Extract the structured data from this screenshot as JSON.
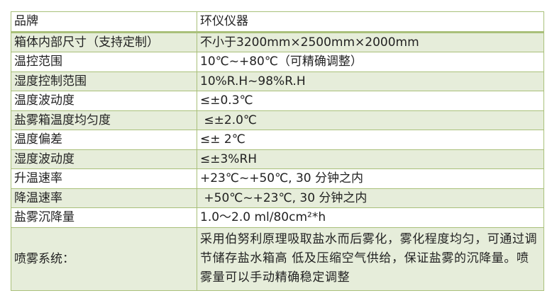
{
  "rows": [
    {
      "label": "品牌",
      "value": "环仪仪器"
    },
    {
      "label": "箱体内部尺寸（支持定制）",
      "value": "不小于3200mm×2500mm×2000mm"
    },
    {
      "label": "温控范围",
      "value": "10℃~+80℃（可精确调整）"
    },
    {
      "label": "湿度控制范围",
      "value": "10%R.H~98%R.H"
    },
    {
      "label": "温度波动度",
      "value": "≤±0.3℃"
    },
    {
      "label": "盐雾箱温度均匀度",
      "value": " ≤±2.0℃"
    },
    {
      "label": "温度偏差",
      "value": "≤± 2℃"
    },
    {
      "label": "湿度波动度",
      "value": "≤±3%RH"
    },
    {
      "label": "升温速率",
      "value": "+23℃~+50℃, 30 分钟之内"
    },
    {
      "label": "降温速率",
      "value": " +50℃~+23℃, 30 分钟之内"
    },
    {
      "label": "盐雾沉降量",
      "value": "1.0～2.0 ml/80cm²*h"
    },
    {
      "label": "喷雾系统：",
      "value": "采用伯努利原理吸取盐水而后雾化，雾化程度均匀，可通过调节储存盐水箱高 低及压缩空气供给，保证盐雾的沉降量。喷雾量可以手动精确稳定调整"
    }
  ],
  "colors": {
    "border": "#a9c07a",
    "stripe": "#e6edda"
  }
}
